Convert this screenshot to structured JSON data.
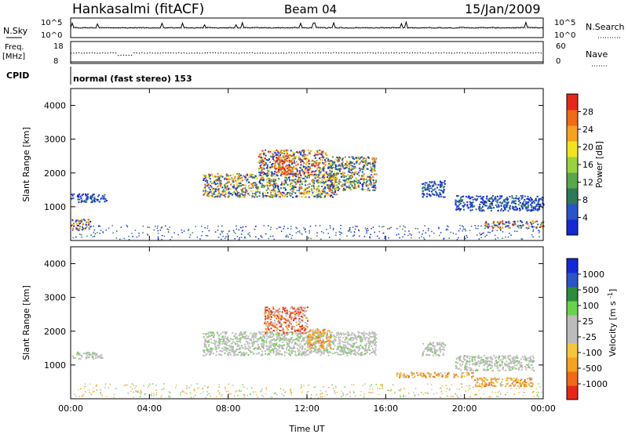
{
  "header": {
    "station": "Hankasalmi (fitACF)",
    "beam": "Beam 04",
    "date": "15/Jan/2009"
  },
  "strip_labels": {
    "nsky": "N.Sky",
    "nsearch": "N.Search",
    "freq": "Freq.",
    "freq_unit": "[MHz]",
    "nave": "Nave",
    "cpid": "CPID",
    "cpid_value": "normal (fast stereo) 153",
    "noise_top": "10^5",
    "noise_bottom": "10^0",
    "noise_right_top": "10^5",
    "noise_right_bottom": "10^0",
    "freq_top": "18",
    "freq_bottom": "8",
    "nave_top": "60",
    "nave_bottom": "0"
  },
  "colors": {
    "power": [
      "#1428d8",
      "#2a54c8",
      "#2e7a58",
      "#5aa64a",
      "#9ad23c",
      "#f2e41a",
      "#f5a21e",
      "#f06a18",
      "#e8261c"
    ],
    "velocity": [
      "#e8261c",
      "#f06a18",
      "#f5a21e",
      "#f5c63c",
      "#bcbcbc",
      "#bcbcbc",
      "#6ad24a",
      "#2e8a3c",
      "#2a54c8",
      "#1428d8"
    ]
  },
  "chart_data": [
    {
      "type": "heatmap",
      "panel": "power",
      "xlabel": "",
      "ylabel": "Slant Range [km]",
      "ylim": [
        0,
        4500
      ],
      "yticks": [
        1000,
        2000,
        3000,
        4000
      ],
      "xlim_hours": [
        0,
        24
      ],
      "colorbar": {
        "label": "Power [dB]",
        "ticks": [
          "4",
          "8",
          "12",
          "16",
          "20",
          "24",
          "28"
        ],
        "range": [
          0,
          30
        ]
      },
      "regions": [
        {
          "t0": 0.0,
          "t1": 1.8,
          "r0": 1150,
          "r1": 1400,
          "level": "low"
        },
        {
          "t0": 0.0,
          "t1": 1.0,
          "r0": 350,
          "r1": 650,
          "level": "high"
        },
        {
          "t0": 6.7,
          "t1": 13.5,
          "r0": 1300,
          "r1": 2000,
          "level": "mid"
        },
        {
          "t0": 9.5,
          "t1": 13.0,
          "r0": 1950,
          "r1": 2700,
          "level": "high"
        },
        {
          "t0": 10.3,
          "t1": 11.2,
          "r0": 2000,
          "r1": 2550,
          "level": "max"
        },
        {
          "t0": 13.0,
          "t1": 15.5,
          "r0": 1500,
          "r1": 2500,
          "level": "mid"
        },
        {
          "t0": 17.8,
          "t1": 19.0,
          "r0": 1300,
          "r1": 1800,
          "level": "low"
        },
        {
          "t0": 19.5,
          "t1": 24.0,
          "r0": 900,
          "r1": 1350,
          "level": "low"
        },
        {
          "t0": 21.0,
          "t1": 24.0,
          "r0": 380,
          "r1": 600,
          "level": "high"
        }
      ]
    },
    {
      "type": "heatmap",
      "panel": "velocity",
      "xlabel": "Time UT",
      "ylabel": "Slant Range [km]",
      "ylim": [
        0,
        4500
      ],
      "yticks": [
        1000,
        2000,
        3000,
        4000
      ],
      "xlim_hours": [
        0,
        24
      ],
      "xticks": [
        "00:00",
        "04:00",
        "08:00",
        "12:00",
        "16:00",
        "20:00",
        "00:00"
      ],
      "colorbar": {
        "label": "Velocity [m s^-1]",
        "ticks": [
          "-1000",
          "-500",
          "-100",
          "-25",
          "25",
          "100",
          "500",
          "1000"
        ]
      },
      "regions": [
        {
          "t0": 0.0,
          "t1": 1.6,
          "r0": 1200,
          "r1": 1400,
          "level": "grey"
        },
        {
          "t0": 6.7,
          "t1": 15.5,
          "r0": 1300,
          "r1": 2000,
          "level": "grey"
        },
        {
          "t0": 9.8,
          "t1": 12.0,
          "r0": 1950,
          "r1": 2750,
          "level": "red"
        },
        {
          "t0": 12.0,
          "t1": 13.2,
          "r0": 1500,
          "r1": 2100,
          "level": "orange"
        },
        {
          "t0": 17.8,
          "t1": 19.0,
          "r0": 1300,
          "r1": 1700,
          "level": "grey"
        },
        {
          "t0": 19.5,
          "t1": 23.5,
          "r0": 850,
          "r1": 1300,
          "level": "grey"
        },
        {
          "t0": 16.5,
          "t1": 20.5,
          "r0": 650,
          "r1": 800,
          "level": "orange"
        },
        {
          "t0": 20.5,
          "t1": 23.5,
          "r0": 380,
          "r1": 650,
          "level": "orange"
        }
      ]
    }
  ]
}
